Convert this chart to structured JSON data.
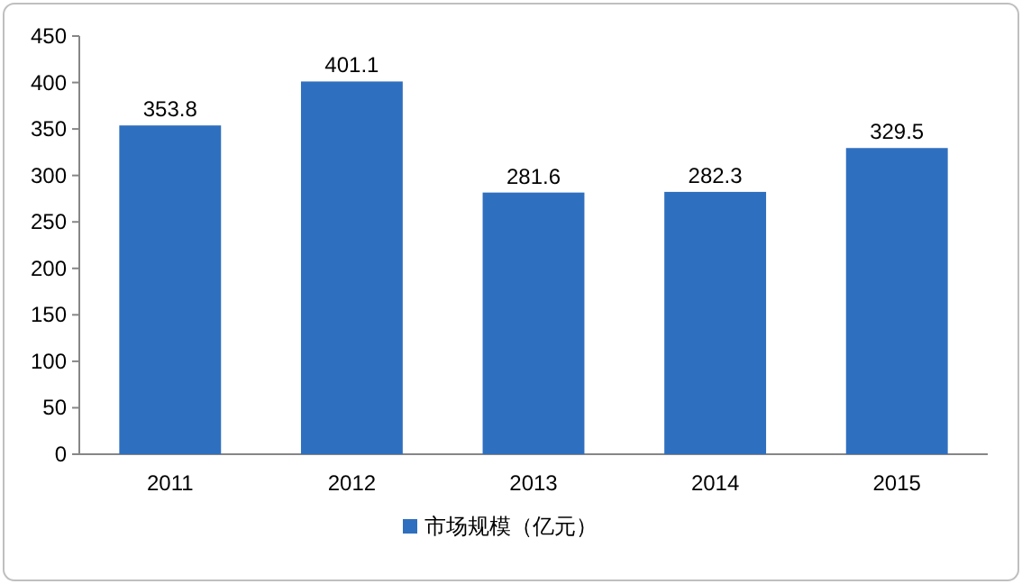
{
  "chart_data": {
    "type": "bar",
    "categories": [
      "2011",
      "2012",
      "2013",
      "2014",
      "2015"
    ],
    "series": [
      {
        "name": "市场规模（亿元）",
        "color": "#2f6fbf",
        "values": [
          353.8,
          401.1,
          281.6,
          282.3,
          329.5
        ]
      }
    ],
    "ylim": [
      0,
      450
    ],
    "yticks": [
      0,
      50,
      100,
      150,
      200,
      250,
      300,
      350,
      400,
      450
    ],
    "data_labels": true,
    "legend": "bottom"
  }
}
